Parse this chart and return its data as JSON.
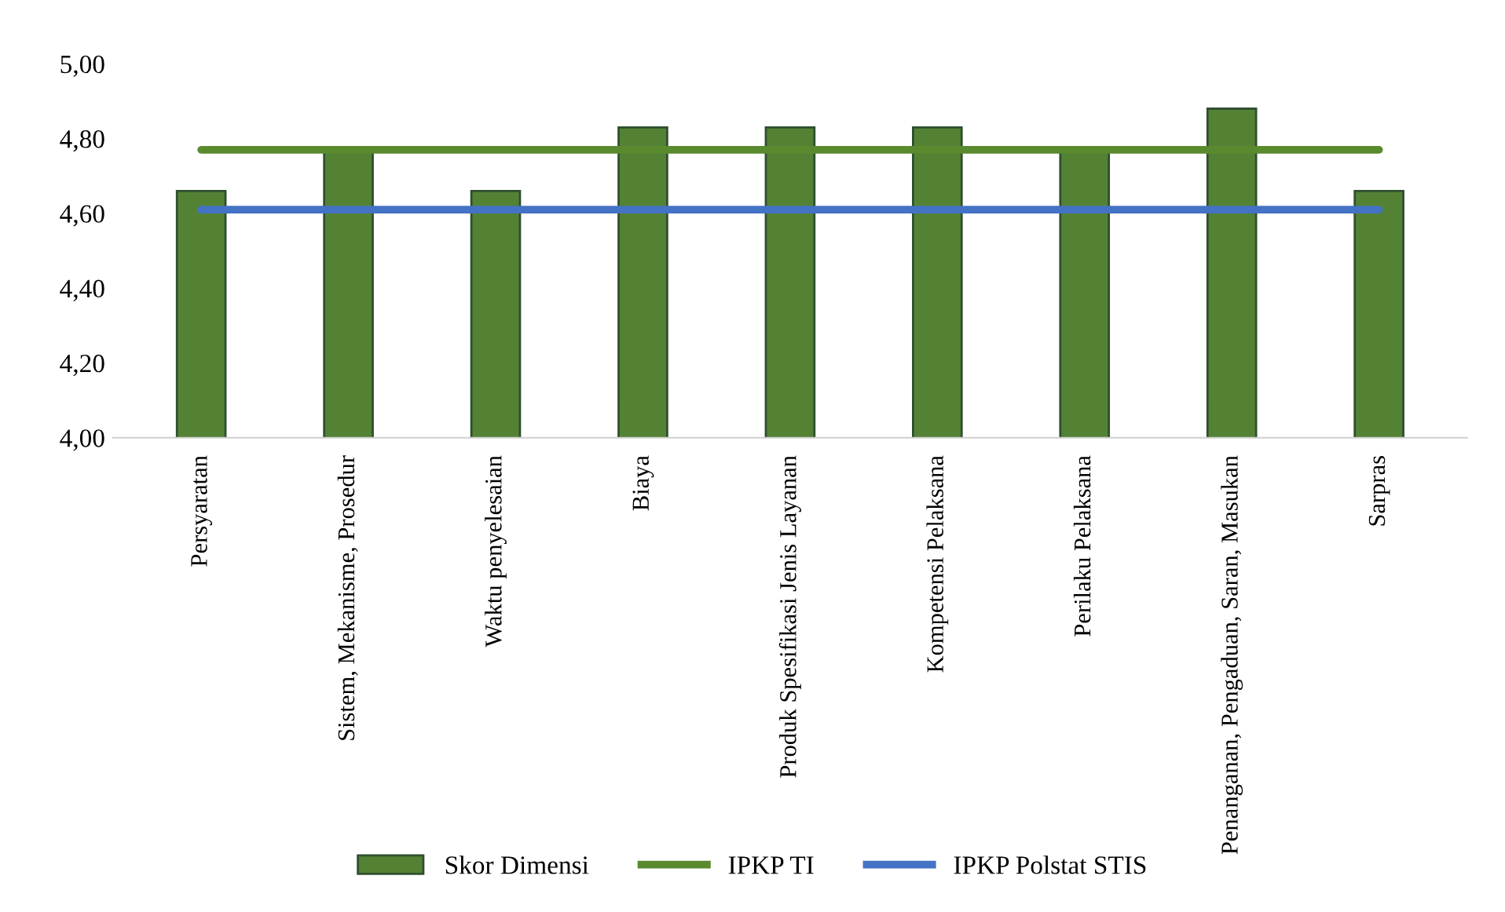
{
  "chart_data": {
    "type": "bar",
    "categories": [
      "Persyaratan",
      "Sistem, Mekanisme, Prosedur",
      "Waktu penyelesaian",
      "Biaya",
      "Produk Spesifikasi Jenis Layanan",
      "Kompetensi Pelaksana",
      "Perilaku Pelaksana",
      "Penanganan, Pengaduan, Saran, Masukan",
      "Sarpras"
    ],
    "series": [
      {
        "name": "Skor Dimensi",
        "type": "bar",
        "color": "#548235",
        "values": [
          4.66,
          4.77,
          4.66,
          4.83,
          4.83,
          4.83,
          4.77,
          4.88,
          4.66
        ]
      },
      {
        "name": "IPKP TI",
        "type": "line",
        "color": "#5a8a2e",
        "values": [
          4.77,
          4.77,
          4.77,
          4.77,
          4.77,
          4.77,
          4.77,
          4.77,
          4.77
        ]
      },
      {
        "name": "IPKP Polstat STIS",
        "type": "line",
        "color": "#4472c4",
        "values": [
          4.61,
          4.61,
          4.61,
          4.61,
          4.61,
          4.61,
          4.61,
          4.61,
          4.61
        ]
      }
    ],
    "ylim": [
      4.0,
      5.0
    ],
    "yticks": [
      {
        "value": 4.0,
        "label": "4,00"
      },
      {
        "value": 4.2,
        "label": "4,20"
      },
      {
        "value": 4.4,
        "label": "4,40"
      },
      {
        "value": 4.6,
        "label": "4,60"
      },
      {
        "value": 4.8,
        "label": "4,80"
      },
      {
        "value": 5.0,
        "label": "5,00"
      }
    ],
    "grid": false,
    "legend": "bottom"
  }
}
